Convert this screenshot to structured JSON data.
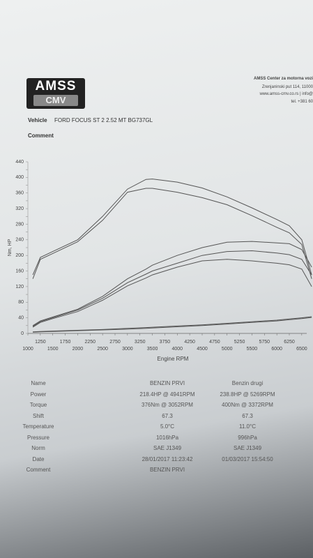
{
  "header": {
    "logo_top": "AMSS",
    "logo_bottom": "CMV",
    "company": [
      "AMSS Center za motorna vozi",
      "Zrenjaninski put 114, 11000",
      "www.amss-cmv.co.rs  | info@",
      "tel. +381 60"
    ],
    "vehicle_label": "Vehicle",
    "vehicle": "FORD FOCUS ST 2 2.52 MT   BG737GL",
    "comment_label": "Comment"
  },
  "chart_data": {
    "type": "line",
    "x_label": "Engine RPM",
    "y_label": "Nm, HP",
    "x": [
      1100,
      1250,
      1500,
      2000,
      2500,
      3000,
      3372,
      3500,
      4000,
      4500,
      5000,
      5500,
      6000,
      6250,
      6500,
      6700
    ],
    "series": [
      {
        "color": "#555",
        "values": [
          150,
          195,
          210,
          240,
          300,
          370,
          395,
          396,
          388,
          373,
          350,
          322,
          292,
          276,
          240,
          150
        ]
      },
      {
        "color": "#555",
        "values": [
          140,
          190,
          205,
          235,
          290,
          362,
          372,
          372,
          362,
          348,
          330,
          302,
          272,
          258,
          228,
          140
        ]
      },
      {
        "color": "#555",
        "values": [
          20,
          32,
          42,
          62,
          95,
          140,
          165,
          175,
          200,
          220,
          234,
          236,
          232,
          230,
          215,
          170
        ]
      },
      {
        "color": "#555",
        "values": [
          18,
          30,
          40,
          60,
          90,
          130,
          152,
          160,
          180,
          200,
          210,
          212,
          206,
          202,
          190,
          150
        ]
      },
      {
        "color": "#555",
        "values": [
          16,
          28,
          38,
          56,
          85,
          122,
          142,
          150,
          170,
          186,
          190,
          186,
          180,
          176,
          165,
          120
        ]
      },
      {
        "color": "#555",
        "values": [
          4,
          5,
          6,
          8,
          10,
          13,
          15,
          16,
          19,
          22,
          26,
          30,
          34,
          37,
          40,
          43
        ]
      },
      {
        "color": "#555",
        "values": [
          3,
          4,
          5,
          7,
          9,
          11,
          13,
          14,
          17,
          20,
          24,
          28,
          32,
          35,
          38,
          41
        ]
      }
    ],
    "xlim": [
      1000,
      6600
    ],
    "ylim": [
      0,
      440
    ],
    "xticks": [
      1000,
      1250,
      1500,
      1750,
      2000,
      2250,
      2500,
      2750,
      3000,
      3250,
      3500,
      3750,
      4000,
      4250,
      4500,
      4750,
      5000,
      5250,
      5500,
      5750,
      6000,
      6250,
      6500
    ],
    "yticks": [
      0,
      20,
      40,
      60,
      80,
      100,
      120,
      140,
      160,
      180,
      200,
      220,
      240,
      260,
      280,
      300,
      320,
      340,
      360,
      380,
      400,
      420,
      440
    ],
    "grid": false
  },
  "table": {
    "rows": [
      {
        "label": "Name",
        "values": [
          "BENZIN PRVI",
          "Benzin drugi"
        ]
      },
      {
        "label": "Power",
        "values": [
          "218.4HP @  4941RPM",
          "238.8HP @  5269RPM"
        ]
      },
      {
        "label": "Torque",
        "values": [
          "376Nm @ 3052RPM",
          "400Nm @ 3372RPM"
        ]
      },
      {
        "label": "Shift",
        "values": [
          "67.3",
          "67.3"
        ]
      },
      {
        "label": "Temperature",
        "values": [
          "5.0°C",
          "11.0°C"
        ]
      },
      {
        "label": "Pressure",
        "values": [
          "1016hPa",
          "996hPa"
        ]
      },
      {
        "label": "Norm",
        "values": [
          "SAE J1349",
          "SAE J1349"
        ]
      },
      {
        "label": "Date",
        "values": [
          "28/01/2017 11:23:42",
          "01/03/2017 15:54:50"
        ]
      },
      {
        "label": "Comment",
        "values": [
          "BENZIN PRVI"
        ]
      }
    ]
  }
}
